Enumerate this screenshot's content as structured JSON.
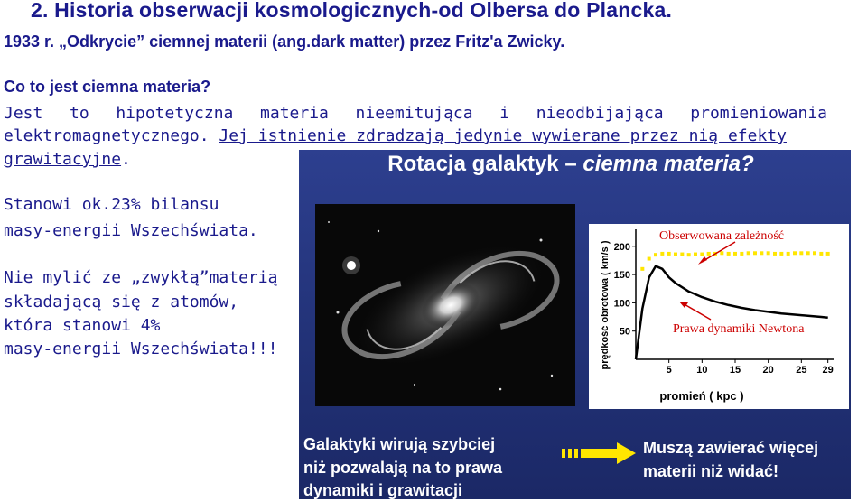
{
  "title": "2. Historia obserwacji kosmologicznych-od Olbersa do Plancka.",
  "subtitle": "1933 r. „Odkrycie” ciemnej materii (ang.dark matter) przez Fritz'a Zwicky.",
  "question": "Co to jest ciemna materia?",
  "para_line1": "Jest to hipotetyczna materia nieemitująca i nieodbijająca promieniowania",
  "para_line2_plain": "elektromagnetycznego. ",
  "para_line2_underlined": "Jej istnienie zdradzają jedynie wywierane przez nią efekty",
  "para_line3_underlined": "grawitacyjne",
  "para_line3_end": ".",
  "stat_line1": "Stanowi ok.23% bilansu",
  "stat_line2": "masy-energii Wszechświata.",
  "note_line1": "Nie mylić ze „zwykłą”materią ",
  "note_line2": "składającą się z atomów,",
  "note_line3": "która stanowi 4%",
  "note_line4": "masy-energii Wszechświata!!!",
  "panel": {
    "title_part1": "Rotacja galaktyk – ",
    "title_part2": "ciemna materia?",
    "bottom_left": [
      "Galaktyki wirują szybciej",
      "niż pozwalają na to prawa",
      "dynamiki i grawitacji"
    ],
    "bottom_right": [
      "Muszą zawierać więcej",
      "materii niż widać!"
    ]
  },
  "chart_data": {
    "type": "line",
    "title": "",
    "xlabel": "promień ( kpc )",
    "ylabel": "prędkość obrotowa ( km/s )",
    "x_ticks": [
      "5",
      "10",
      "15",
      "20",
      "25",
      "29"
    ],
    "y_ticks": [
      "50",
      "100",
      "150",
      "200"
    ],
    "xlim": [
      0,
      30
    ],
    "ylim": [
      0,
      230
    ],
    "series": [
      {
        "name": "Obserwowana zależność",
        "style": "dotted",
        "color": "#ffe600",
        "x": [
          1,
          2,
          3,
          4,
          5,
          6,
          7,
          8,
          9,
          10,
          11,
          12,
          13,
          14,
          15,
          16,
          17,
          18,
          19,
          20,
          21,
          22,
          23,
          24,
          25,
          26,
          27,
          28,
          29
        ],
        "y": [
          160,
          178,
          185,
          187,
          187,
          186,
          186,
          185,
          186,
          186,
          187,
          187,
          188,
          187,
          187,
          187,
          188,
          188,
          188,
          188,
          187,
          187,
          187,
          188,
          188,
          188,
          188,
          187,
          187
        ]
      },
      {
        "name": "Prawa dynamiki Newtona",
        "style": "solid",
        "color": "#000000",
        "x": [
          0,
          1,
          2,
          3,
          4,
          5,
          6,
          8,
          10,
          12,
          14,
          16,
          18,
          20,
          22,
          24,
          26,
          28,
          29
        ],
        "y": [
          0,
          90,
          145,
          165,
          160,
          145,
          135,
          120,
          110,
          102,
          96,
          91,
          87,
          84,
          81,
          79,
          77,
          75,
          74
        ]
      }
    ],
    "annotations": [
      "Obserwowana zależność",
      "Prawa dynamiki Newtona"
    ],
    "grid": false
  },
  "colors": {
    "text_blue": "#1a1a8c",
    "panel_bg": "#223277",
    "annotation_red": "#cc0000",
    "dots_yellow": "#ffe600"
  }
}
